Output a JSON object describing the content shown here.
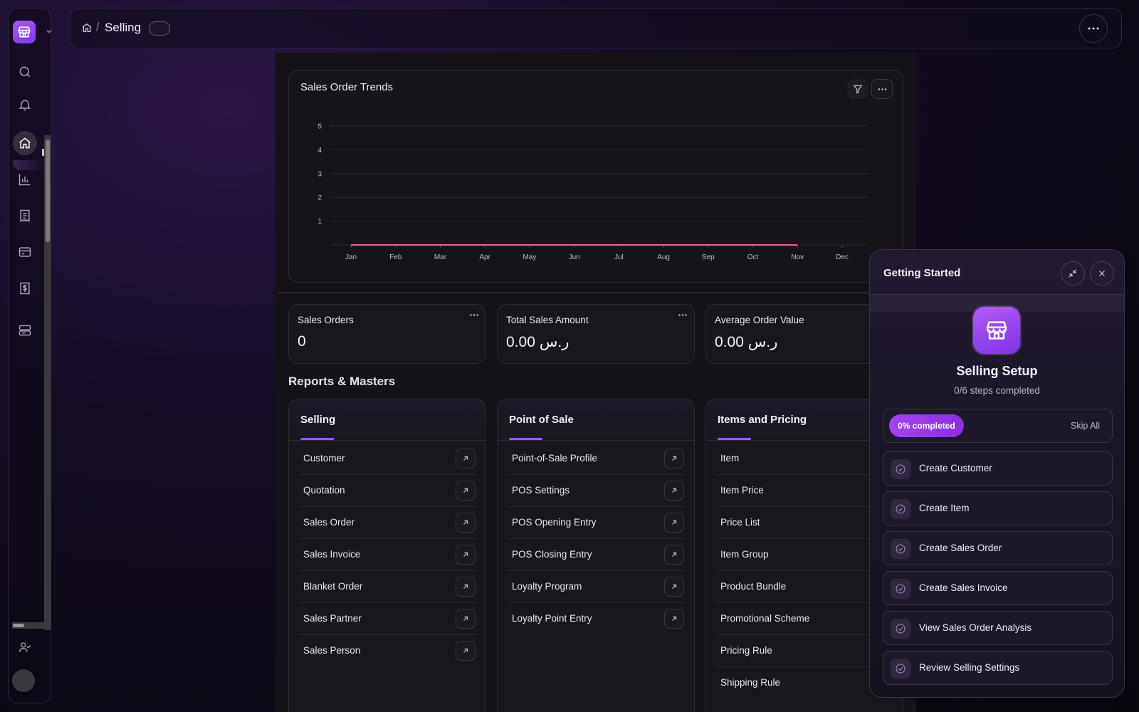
{
  "breadcrumb": {
    "title": "Selling"
  },
  "chart": {
    "title": "Sales Order Trends"
  },
  "chart_data": {
    "type": "line",
    "title": "Sales Order Trends",
    "categories": [
      "Jan",
      "Feb",
      "Mar",
      "Apr",
      "May",
      "Jun",
      "Jul",
      "Aug",
      "Sep",
      "Oct",
      "Nov",
      "Dec"
    ],
    "values": [
      0,
      0,
      0,
      0,
      0,
      0,
      0,
      0,
      0,
      0,
      0,
      null
    ],
    "yticks": [
      "1",
      "2",
      "3",
      "4",
      "5"
    ],
    "ylim": [
      0,
      5
    ],
    "grid": true,
    "line_color": "#e56b8c"
  },
  "stats": [
    {
      "label": "Sales Orders",
      "value": "0"
    },
    {
      "label": "Total Sales Amount",
      "value": "0.00 ر.س"
    },
    {
      "label": "Average Order Value",
      "value": "0.00 ر.س"
    }
  ],
  "reports_title": "Reports & Masters",
  "cards": [
    {
      "title": "Selling",
      "items": [
        "Customer",
        "Quotation",
        "Sales Order",
        "Sales Invoice",
        "Blanket Order",
        "Sales Partner",
        "Sales Person"
      ]
    },
    {
      "title": "Point of Sale",
      "items": [
        "Point-of-Sale Profile",
        "POS Settings",
        "POS Opening Entry",
        "POS Closing Entry",
        "Loyalty Program",
        "Loyalty Point Entry"
      ]
    },
    {
      "title": "Items and Pricing",
      "items": [
        "Item",
        "Item Price",
        "Price List",
        "Item Group",
        "Product Bundle",
        "Promotional Scheme",
        "Pricing Rule",
        "Shipping Rule"
      ]
    }
  ],
  "getting_started": {
    "title": "Getting Started",
    "setup_title": "Selling Setup",
    "setup_sub": "0/6 steps completed",
    "progress_label": "0% completed",
    "progress": 0,
    "skip_label": "Skip All",
    "steps": [
      "Create Customer",
      "Create Item",
      "Create Sales Order",
      "Create Sales Invoice",
      "View Sales Order Analysis",
      "Review Selling Settings"
    ]
  },
  "colors": {
    "accent": "#a855f7",
    "background": "#0b0812"
  }
}
